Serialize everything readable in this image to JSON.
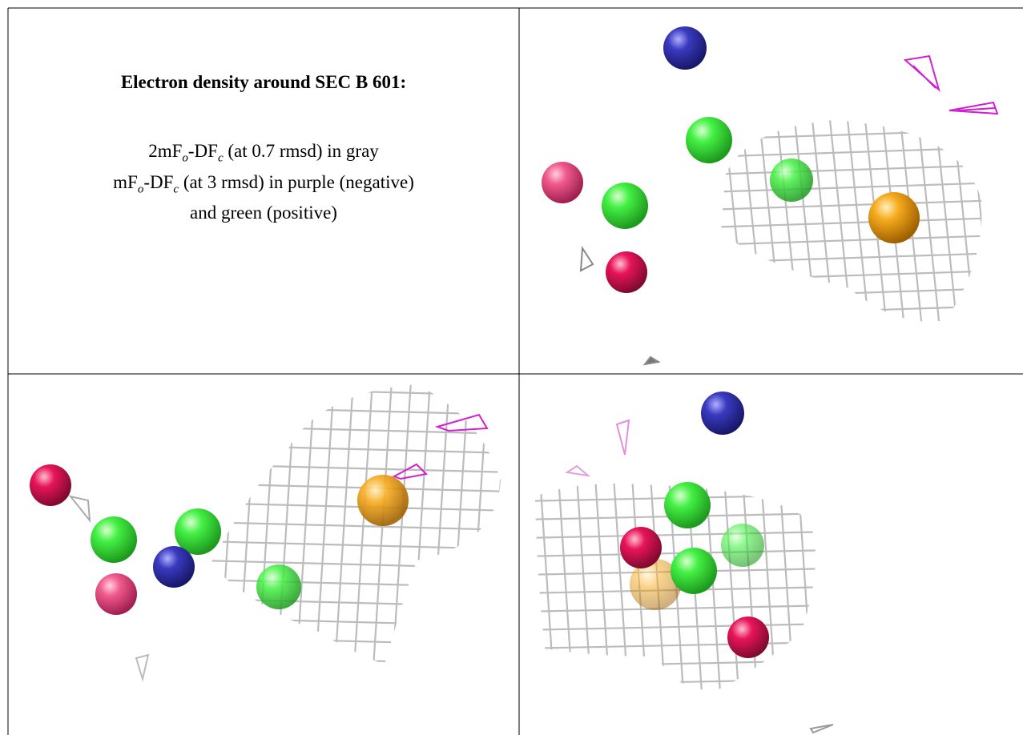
{
  "caption": {
    "title": "Electron density around SEC B 601:",
    "lines": [
      [
        "2mF",
        "o",
        "-DF",
        "c",
        " (at 0.7 rmsd) in gray"
      ],
      [
        "mF",
        "o",
        "-DF",
        "c",
        " (at 3 rmsd) in purple (negative)"
      ],
      [
        "and green (positive)"
      ]
    ]
  }
}
